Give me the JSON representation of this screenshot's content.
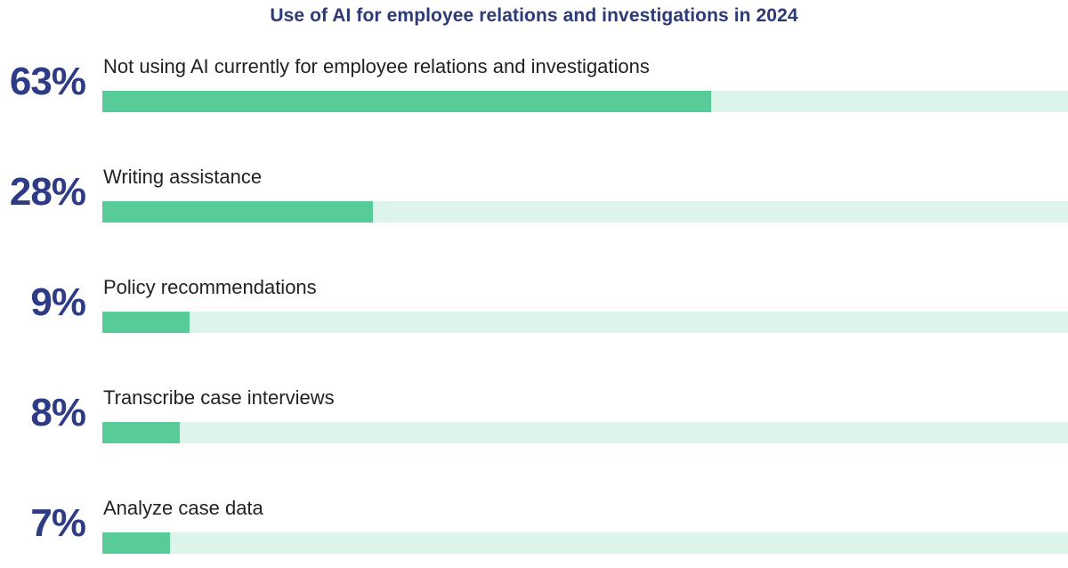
{
  "chart_data": {
    "type": "bar",
    "orientation": "horizontal",
    "title": "Use of AI for employee relations and investigations in 2024",
    "xlabel": "",
    "ylabel": "",
    "xlim": [
      0,
      100
    ],
    "grid": false,
    "legend": "none",
    "colors": {
      "bar": "#58cc98",
      "track": "#dcf4ea",
      "value_text": "#2e3b86",
      "title_text": "#2c3a78"
    },
    "bars": [
      {
        "category": "Not using AI currently for employee relations and investigations",
        "value": 63,
        "value_label": "63%"
      },
      {
        "category": "Writing assistance",
        "value": 28,
        "value_label": "28%"
      },
      {
        "category": "Policy recommendations",
        "value": 9,
        "value_label": "9%"
      },
      {
        "category": "Transcribe case interviews",
        "value": 8,
        "value_label": "8%"
      },
      {
        "category": "Analyze case data",
        "value": 7,
        "value_label": "7%"
      }
    ]
  }
}
